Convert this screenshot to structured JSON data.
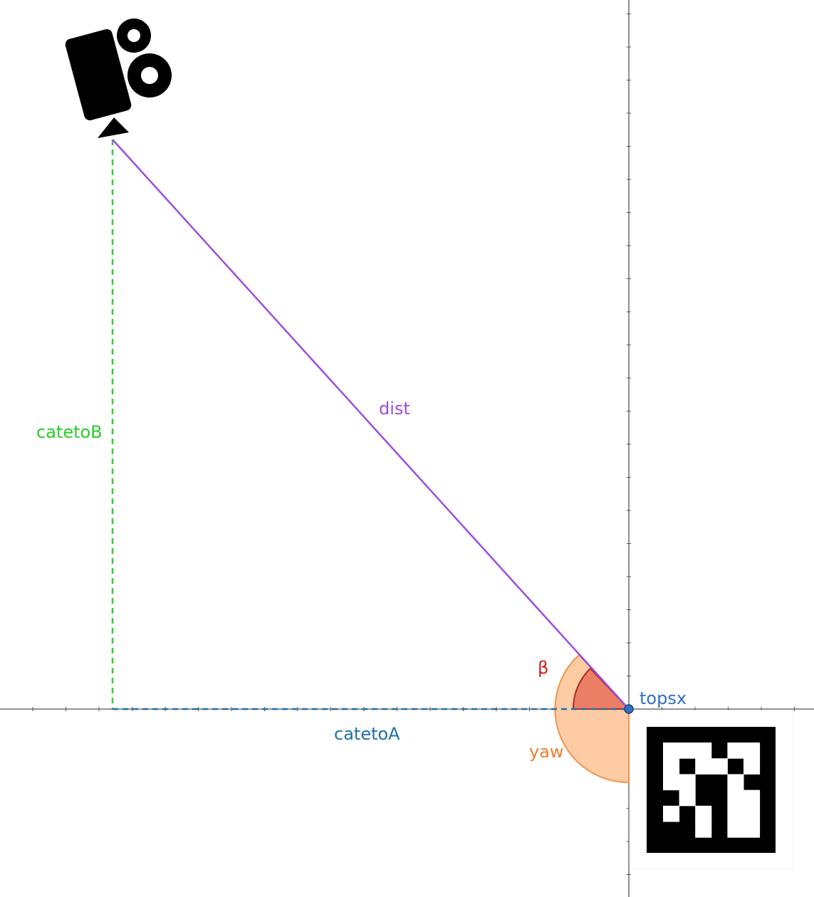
{
  "labels": {
    "dist": "dist",
    "cateto_a": "catetoA",
    "cateto_b": "catetoB",
    "beta": "β",
    "yaw": "yaw",
    "point": "topsx"
  },
  "colors": {
    "dist": "#9b4de0",
    "cateto_a": "#1f6fa8",
    "cateto_b": "#29cc29",
    "beta": "#cc1f1f",
    "yaw": "#f07d2a",
    "point": "#2f6fc4"
  },
  "icons": {
    "camera": "movie-camera-icon",
    "marker": "aruco-marker-icon"
  }
}
